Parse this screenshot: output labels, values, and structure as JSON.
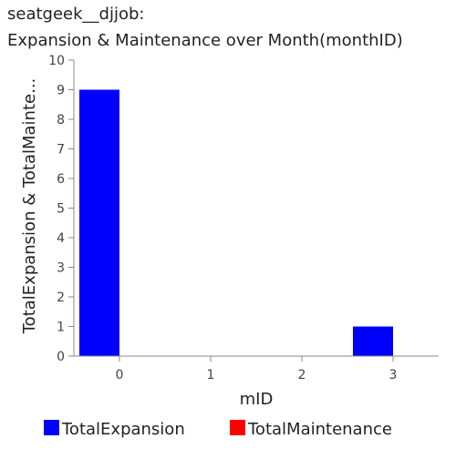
{
  "chart_data": {
    "type": "bar",
    "title": "seatgeek__djjob:",
    "subtitle": "Expansion & Maintenance over Month(monthID)",
    "xlabel": "mID",
    "ylabel": "TotalExpansion & TotalMainte...",
    "categories": [
      "0",
      "1",
      "2",
      "3"
    ],
    "series": [
      {
        "name": "TotalExpansion",
        "color": "#0000ff",
        "values": [
          9,
          0,
          0,
          1
        ]
      },
      {
        "name": "TotalMaintenance",
        "color": "#ff0000",
        "values": [
          0,
          0,
          0,
          0
        ]
      }
    ],
    "ylim": [
      0,
      10
    ],
    "yticks": [
      0,
      1,
      2,
      3,
      4,
      5,
      6,
      7,
      8,
      9,
      10
    ],
    "grid": false,
    "legend_position": "bottom"
  }
}
